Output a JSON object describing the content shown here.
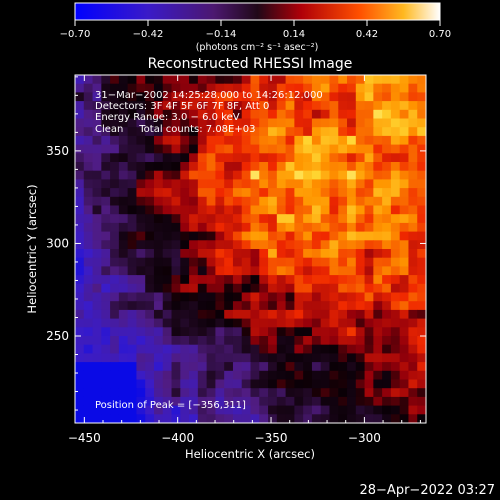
{
  "chart_data": {
    "type": "heatmap",
    "title": "Reconstructed RHESSI Image",
    "xlabel": "Heliocentric X (arcsec)",
    "ylabel": "Heliocentric Y (arcsec)",
    "xlim": [
      -455,
      -267
    ],
    "ylim": [
      203,
      391
    ],
    "x_ticks": [
      -450,
      -400,
      -350,
      -300
    ],
    "y_ticks": [
      250,
      300,
      350
    ],
    "x_tick_labels": [
      "−450",
      "−400",
      "−350",
      "−300"
    ],
    "y_tick_labels": [
      "250",
      "300",
      "350"
    ],
    "colorbar": {
      "range": [
        -0.7,
        0.7
      ],
      "ticks": [
        -0.7,
        -0.42,
        -0.14,
        0.14,
        0.42,
        0.7
      ],
      "tick_labels": [
        "−0.70",
        "−0.42",
        "−0.14",
        "0.14",
        "0.42",
        "0.70"
      ],
      "units": "(photons cm⁻² s⁻¹ asec⁻²)"
    },
    "annotations": {
      "time": "31−Mar−2002 14:25:28.000 to 14:26:12.000",
      "detectors": "Detectors: 3F 4F 5F 6F 7F 8F, Att 0",
      "energy": "Energy Range: 3.0 − 6.0 keV",
      "clean": "Clean     Total counts: 7.08E+03",
      "peak": "Position of Peak = [−356,311]"
    },
    "peak": {
      "x": -356,
      "y": 311
    },
    "grid": false
  },
  "footer": {
    "timestamp": "28−Apr−2022 03:27"
  }
}
